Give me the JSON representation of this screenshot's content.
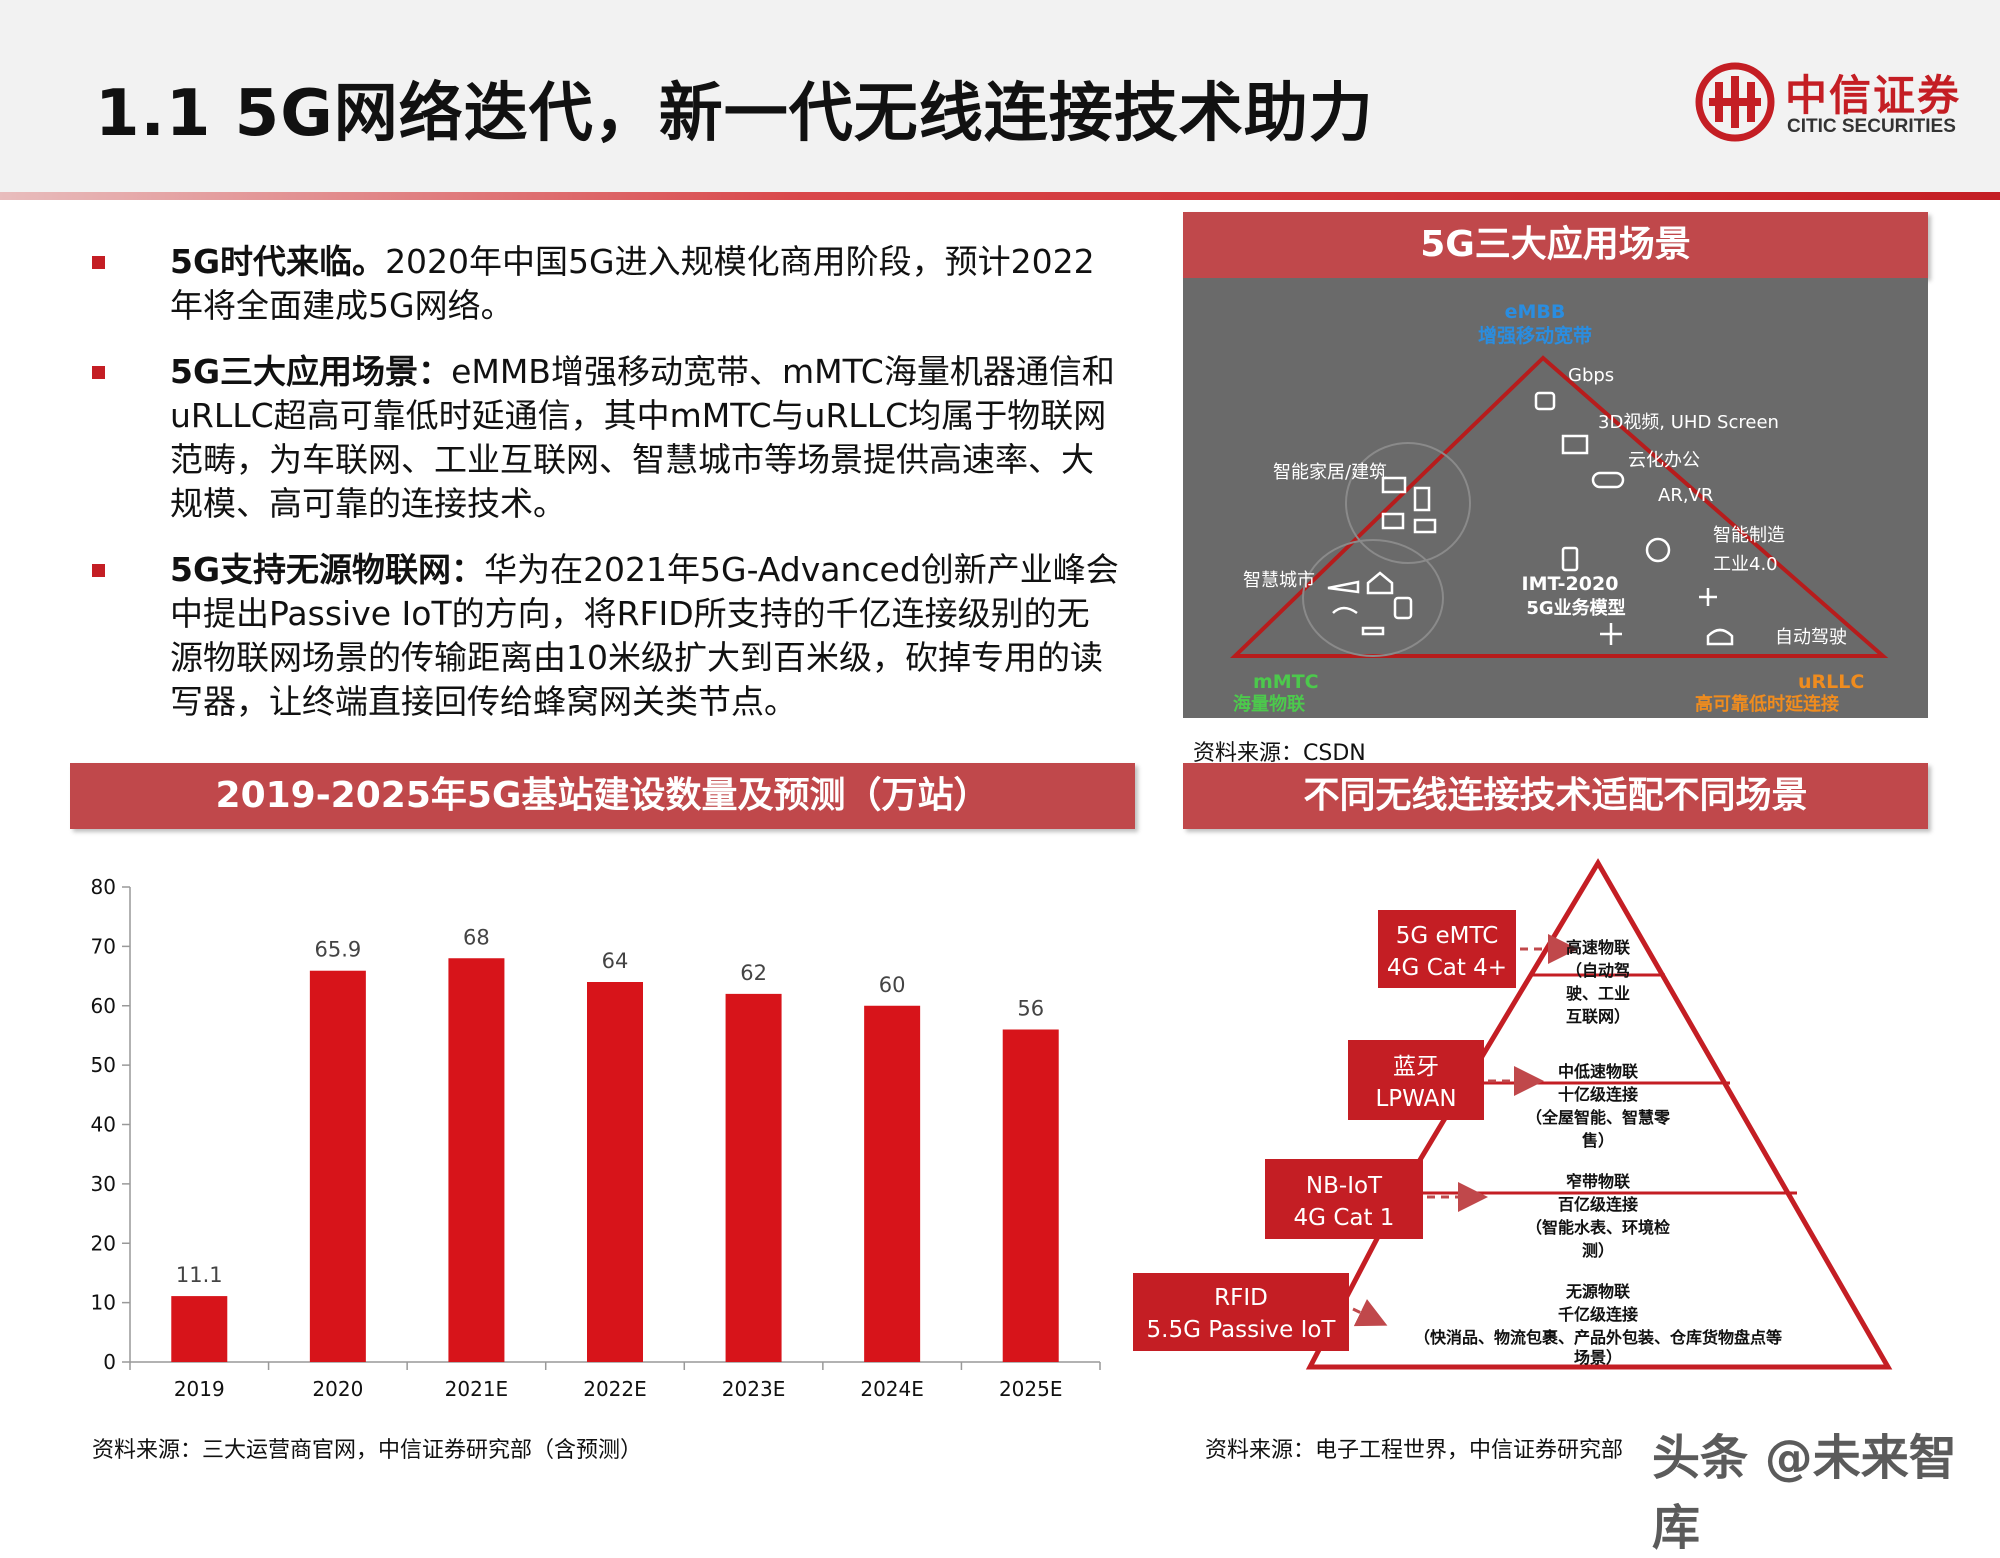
{
  "header": {
    "title": "1.1 5G网络迭代，新一代无线连接技术助力",
    "logo_cn": "中信证券",
    "logo_en": "CITIC SECURITIES"
  },
  "bullets": [
    {
      "bold": "5G时代来临。",
      "text": "2020年中国5G进入规模化商用阶段，预计2022年将全面建成5G网络。"
    },
    {
      "bold": "5G三大应用场景：",
      "text": "eMMB增强移动宽带、mMTC海量机器通信和uRLLC超高可靠低时延通信，其中mMTC与uRLLC均属于物联网范畴，为车联网、工业互联网、智慧城市等场景提供高速率、大规模、高可靠的连接技术。"
    },
    {
      "bold": "5G支持无源物联网：",
      "text": "华为在2021年5G-Advanced创新产业峰会中提出Passive IoT的方向，将RFID所支持的千亿连接级别的无源物联网场景的传输距离由10米级扩大到百米级，砍掉专用的读写器，让终端直接回传给蜂窝网关类节点。"
    }
  ],
  "scenario": {
    "banner": "5G三大应用场景",
    "top_en": "eMBB",
    "top_cn": "增强移动宽带",
    "left_en": "mMTC",
    "left_cn": "海量物联",
    "right_en": "uRLLC",
    "right_cn": "高可靠低时延连接",
    "center1": "IMT-2020",
    "center2": "5G业务模型",
    "labels": [
      "Gbps",
      "3D视频, UHD Screen",
      "云化办公",
      "AR,VR",
      "智能制造",
      "工业4.0",
      "自动驾驶",
      "智能家居/建筑",
      "智慧城市"
    ],
    "source": "资料来源：CSDN"
  },
  "chart": {
    "banner": "2019-2025年5G基站建设数量及预测（万站）",
    "source": "资料来源：三大运营商官网，中信证券研究部（含预测）"
  },
  "chart_data": {
    "type": "bar",
    "categories": [
      "2019",
      "2020",
      "2021E",
      "2022E",
      "2023E",
      "2024E",
      "2025E"
    ],
    "values": [
      11.1,
      65.9,
      68,
      64,
      62,
      60,
      56
    ],
    "data_labels": [
      "11.1",
      "65.9",
      "68",
      "64",
      "62",
      "60",
      "56"
    ],
    "yticks": [
      "0",
      "10",
      "20",
      "30",
      "40",
      "50",
      "60",
      "70",
      "80"
    ],
    "ylim": [
      0,
      80
    ],
    "grid": false,
    "bar_color": "#d7141a"
  },
  "pyramid": {
    "banner": "不同无线连接技术适配不同场景",
    "tiers": [
      {
        "tech1": "5G eMTC",
        "tech2": "4G Cat 4+",
        "lines": [
          "高速物联",
          "（自动驾",
          "驶、工业",
          "互联网）"
        ]
      },
      {
        "tech1": "蓝牙",
        "tech2": "LPWAN",
        "lines": [
          "中低速物联",
          "十亿级连接",
          "（全屋智能、智慧零",
          "售）"
        ]
      },
      {
        "tech1": "NB-IoT",
        "tech2": "4G Cat 1",
        "lines": [
          "窄带物联",
          "百亿级连接",
          "（智能水表、环境检",
          "测）"
        ]
      },
      {
        "tech1": "RFID",
        "tech2": "5.5G Passive IoT",
        "lines": [
          "无源物联",
          "千亿级连接",
          "（快消品、物流包裹、产品外包装、仓库货物盘点等",
          "场景）"
        ]
      }
    ],
    "source": "资料来源：电子工程世界，中信证券研究部"
  },
  "watermark": "头条 @未来智库"
}
